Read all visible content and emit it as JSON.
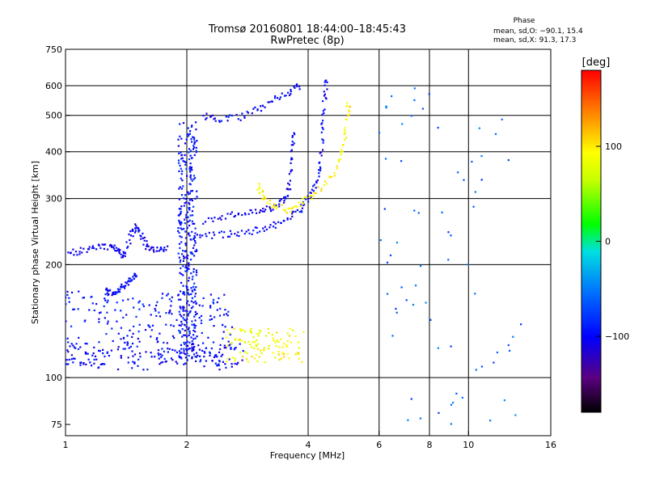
{
  "header": {
    "title_line1": "Tromsø 20160801 18:44:00–18:45:43",
    "title_line2": "RwPretec (8p)"
  },
  "phase_box": {
    "label": "Phase",
    "line_o": "mean, sd,O: −90.1, 15.4",
    "line_x": "mean, sd,X:  91.3, 17.3"
  },
  "colorbar": {
    "unit": "[deg]",
    "range": [
      -180,
      180
    ],
    "ticks": [
      {
        "value": 100,
        "label": "100"
      },
      {
        "value": 0,
        "label": "0"
      },
      {
        "value": -100,
        "label": "−100"
      }
    ]
  },
  "chart_data": {
    "type": "scatter",
    "xlabel": "Frequency [MHz]",
    "ylabel": "Stationary phase Virtual Height [km]",
    "x_scale": "log",
    "y_scale": "log",
    "xlim": [
      1,
      16
    ],
    "ylim": [
      70,
      750
    ],
    "x_ticks": [
      {
        "value": 1,
        "label": "1"
      },
      {
        "value": 2,
        "label": "2"
      },
      {
        "value": 4,
        "label": "4"
      },
      {
        "value": 6,
        "label": "6"
      },
      {
        "value": 8,
        "label": "8"
      },
      {
        "value": 10,
        "label": "10"
      },
      {
        "value": 16,
        "label": "16"
      }
    ],
    "x_gridlines": [
      2,
      4,
      6,
      8,
      10
    ],
    "y_ticks": [
      {
        "value": 75,
        "label": "75"
      },
      {
        "value": 100,
        "label": "100"
      },
      {
        "value": 200,
        "label": "200"
      },
      {
        "value": 300,
        "label": "300"
      },
      {
        "value": 400,
        "label": "400"
      },
      {
        "value": 500,
        "label": "500"
      },
      {
        "value": 600,
        "label": "600"
      },
      {
        "value": 750,
        "label": "750"
      }
    ],
    "y_gridlines": [
      100,
      200,
      300,
      400,
      500,
      600
    ],
    "grid": true,
    "color_by": "phase (deg)",
    "traces": [
      {
        "description": "O-mode low layer cloud",
        "f_range": [
          1.0,
          2.6
        ],
        "h_range": [
          105,
          170
        ],
        "phase": -95,
        "n": 260
      },
      {
        "description": "O-mode band near 120 km",
        "f_range": [
          1.0,
          2.8
        ],
        "h_range": [
          108,
          125
        ],
        "phase": -100,
        "n": 120
      },
      {
        "description": "O-mode E-trace",
        "points": [
          [
            1.02,
            215
          ],
          [
            1.1,
            218
          ],
          [
            1.2,
            222
          ],
          [
            1.3,
            225
          ],
          [
            1.35,
            218
          ],
          [
            1.4,
            210
          ],
          [
            1.45,
            240
          ],
          [
            1.5,
            255
          ],
          [
            1.55,
            235
          ],
          [
            1.6,
            222
          ],
          [
            1.7,
            220
          ],
          [
            1.8,
            222
          ]
        ],
        "phase": -105
      },
      {
        "description": "O-mode low hook",
        "points": [
          [
            1.25,
            170
          ],
          [
            1.3,
            168
          ],
          [
            1.35,
            172
          ],
          [
            1.4,
            175
          ],
          [
            1.45,
            182
          ],
          [
            1.5,
            190
          ]
        ],
        "phase": -100
      },
      {
        "description": "O-mode vertical spread near 2 MHz",
        "f_range": [
          1.9,
          2.12
        ],
        "h_range": [
          110,
          480
        ],
        "phase": -95,
        "n": 330
      },
      {
        "description": "O-mode F trace",
        "points": [
          [
            2.05,
            235
          ],
          [
            2.3,
            240
          ],
          [
            2.6,
            242
          ],
          [
            2.9,
            245
          ],
          [
            3.2,
            252
          ],
          [
            3.5,
            262
          ],
          [
            3.8,
            280
          ],
          [
            4.0,
            300
          ],
          [
            4.2,
            330
          ],
          [
            4.3,
            380
          ],
          [
            4.35,
            460
          ],
          [
            4.4,
            560
          ],
          [
            4.45,
            640
          ]
        ],
        "phase": -100
      },
      {
        "description": "O-mode upper cusp",
        "points": [
          [
            2.2,
            260
          ],
          [
            2.5,
            270
          ],
          [
            2.8,
            275
          ],
          [
            3.1,
            280
          ],
          [
            3.3,
            285
          ],
          [
            3.5,
            300
          ],
          [
            3.6,
            330
          ],
          [
            3.65,
            400
          ],
          [
            3.7,
            460
          ]
        ],
        "phase": -105
      },
      {
        "description": "O-mode top trace",
        "points": [
          [
            2.2,
            500
          ],
          [
            2.4,
            490
          ],
          [
            2.7,
            495
          ],
          [
            3.0,
            520
          ],
          [
            3.3,
            550
          ],
          [
            3.6,
            580
          ],
          [
            3.85,
            600
          ]
        ],
        "phase": -100
      },
      {
        "description": "X-mode F trace",
        "points": [
          [
            3.0,
            325
          ],
          [
            3.1,
            300
          ],
          [
            3.3,
            285
          ],
          [
            3.6,
            280
          ],
          [
            3.9,
            295
          ],
          [
            4.3,
            320
          ],
          [
            4.7,
            360
          ],
          [
            4.9,
            410
          ],
          [
            5.0,
            500
          ],
          [
            5.05,
            540
          ]
        ],
        "phase": 95
      },
      {
        "description": "X-mode low spread",
        "f_range": [
          2.5,
          3.9
        ],
        "h_range": [
          110,
          135
        ],
        "phase": 90,
        "n": 110
      },
      {
        "description": "sporadic points above 6 MHz",
        "f_range": [
          6.0,
          13.5
        ],
        "h_range": [
          75,
          620
        ],
        "phase": -60,
        "n": 70
      }
    ]
  }
}
